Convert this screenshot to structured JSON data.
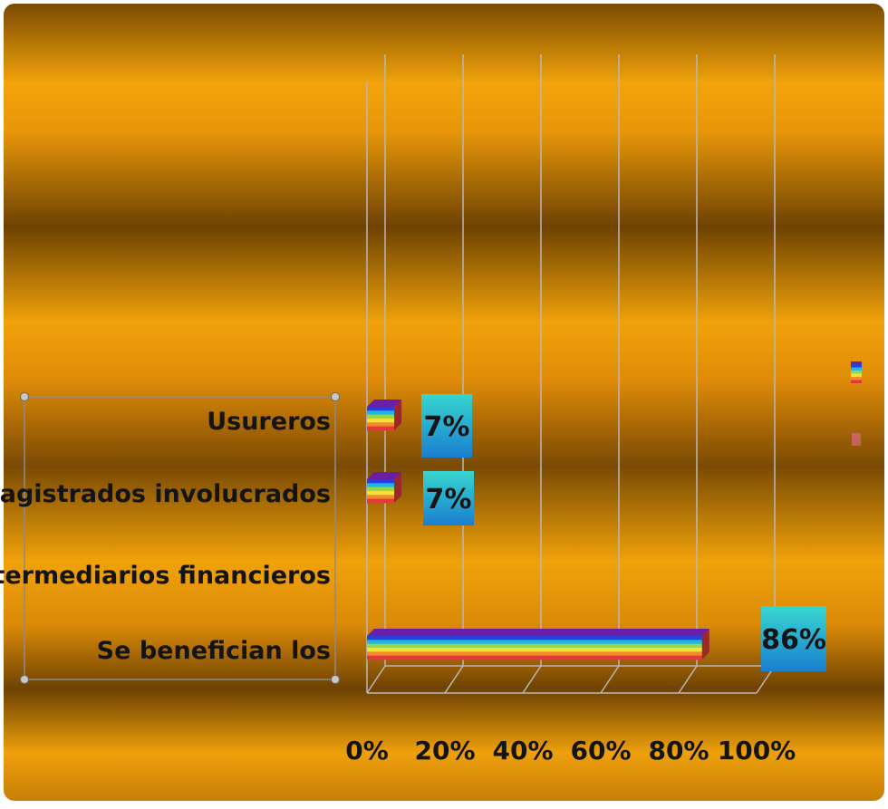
{
  "chart_data": {
    "type": "bar",
    "orientation": "horizontal",
    "categories": [
      "Usureros",
      "Magistrados involucrados",
      "intermediarios financieros",
      "Se benefician los"
    ],
    "series": [
      {
        "values": [
          7,
          7,
          null,
          86
        ]
      }
    ],
    "data_labels": [
      "7%",
      "7%",
      "",
      "86%"
    ],
    "x_ticks": [
      "0%",
      "20%",
      "40%",
      "60%",
      "80%",
      "100%"
    ],
    "xlim": [
      0,
      100
    ],
    "unit": "%",
    "grid": true,
    "legend_position": "right",
    "colors": {
      "background": "#e69a06",
      "band_dark": "#7a4a02",
      "bar_top": "#6a1fa8",
      "bar_stripes": [
        "#2a3fd8",
        "#19b8e8",
        "#9ad64a",
        "#f4e23a",
        "#f08a2a",
        "#e23a3a"
      ],
      "label_box_top": "#37d6cf",
      "label_box_bottom": "#1a7fd0"
    }
  }
}
